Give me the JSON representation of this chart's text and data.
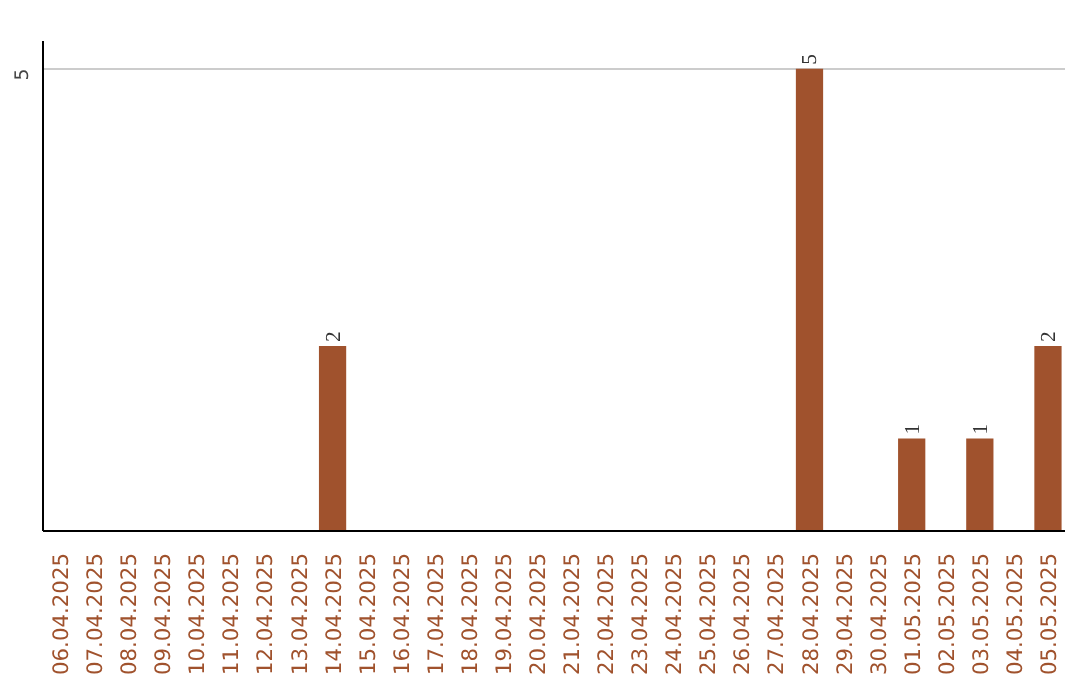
{
  "chart_data": {
    "type": "bar",
    "categories": [
      "06.04.2025",
      "07.04.2025",
      "08.04.2025",
      "09.04.2025",
      "10.04.2025",
      "11.04.2025",
      "12.04.2025",
      "13.04.2025",
      "14.04.2025",
      "15.04.2025",
      "16.04.2025",
      "17.04.2025",
      "18.04.2025",
      "19.04.2025",
      "20.04.2025",
      "21.04.2025",
      "22.04.2025",
      "23.04.2025",
      "24.04.2025",
      "25.04.2025",
      "26.04.2025",
      "27.04.2025",
      "28.04.2025",
      "29.04.2025",
      "30.04.2025",
      "01.05.2025",
      "02.05.2025",
      "03.05.2025",
      "04.05.2025",
      "05.05.2025"
    ],
    "values": [
      0,
      0,
      0,
      0,
      0,
      0,
      0,
      0,
      2,
      0,
      0,
      0,
      0,
      0,
      0,
      0,
      0,
      0,
      0,
      0,
      0,
      0,
      5,
      0,
      0,
      1,
      0,
      1,
      0,
      2
    ],
    "color": "#a0522d",
    "value_labels": [
      null,
      null,
      null,
      null,
      null,
      null,
      null,
      null,
      "2",
      null,
      null,
      null,
      null,
      null,
      null,
      null,
      null,
      null,
      null,
      null,
      null,
      null,
      "5",
      null,
      null,
      "1",
      null,
      "1",
      null,
      "2"
    ],
    "ylim": [
      0,
      5.3
    ],
    "yticks": [
      5
    ],
    "grid": "y"
  }
}
